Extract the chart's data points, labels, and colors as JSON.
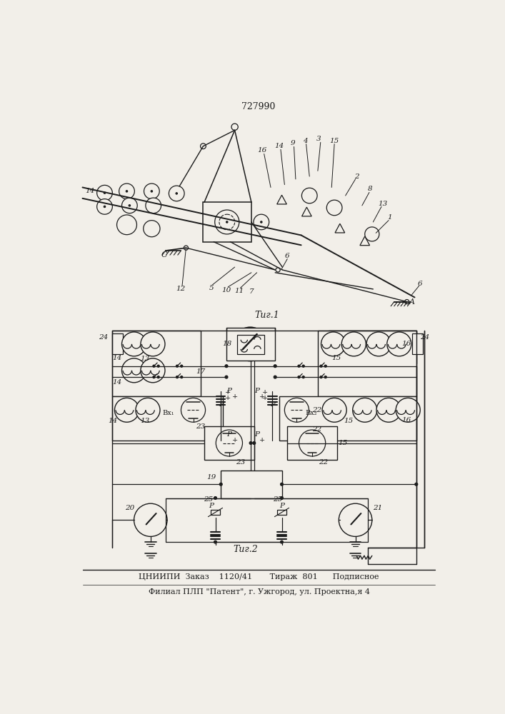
{
  "patent_number": "727990",
  "fig1_label": "Τиг.1",
  "fig2_label": "Τиг.2",
  "footer1": "ЦНИИПИ  Заказ    1120/41       Тираж  801      Подписное",
  "footer2": "Филиал ПЛП \"Патент\", г. Ужгород, ул. Проектна,я 4",
  "bg": "#f2efe9",
  "lc": "#1c1c1c"
}
